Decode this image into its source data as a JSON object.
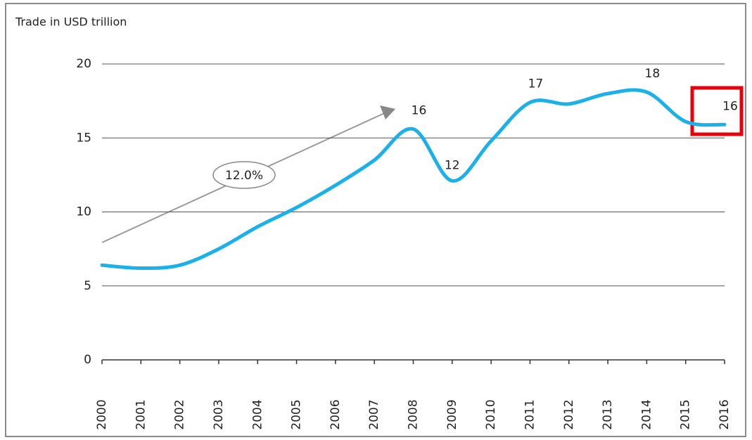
{
  "chart_data": {
    "type": "line",
    "y_axis_label": "Trade in USD trillion",
    "categories": [
      "2000",
      "2001",
      "2002",
      "2003",
      "2004",
      "2005",
      "2006",
      "2007",
      "2008",
      "2009",
      "2010",
      "2011",
      "2012",
      "2013",
      "2014",
      "2015",
      "2016"
    ],
    "series": [
      {
        "name": "Trade",
        "color": "#1ab0ea",
        "values": [
          6.4,
          6.2,
          6.4,
          7.5,
          9.0,
          10.3,
          11.8,
          13.5,
          15.6,
          12.1,
          14.8,
          17.4,
          17.3,
          18.0,
          18.1,
          16.1,
          15.9
        ],
        "value_labels": [
          null,
          null,
          null,
          null,
          null,
          null,
          null,
          null,
          "16",
          "12",
          null,
          "17",
          null,
          null,
          "18",
          null,
          "16"
        ]
      }
    ],
    "annotation": "12.0%",
    "ylim": [
      0,
      20
    ],
    "yticks": [
      0,
      5,
      10,
      15,
      20
    ],
    "grid": true
  }
}
